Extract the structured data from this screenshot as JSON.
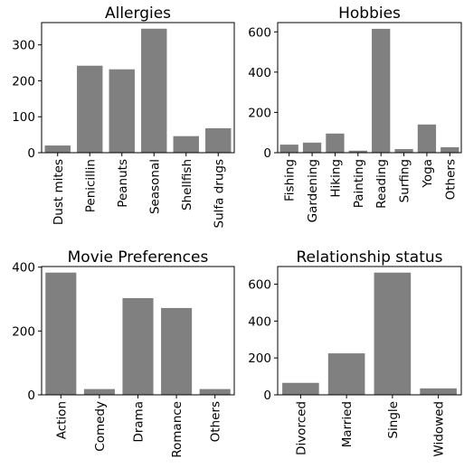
{
  "colors": {
    "bar": "#808080",
    "axis": "#000000",
    "background": "#ffffff"
  },
  "chart_data": [
    {
      "type": "bar",
      "title": "Allergies",
      "categories": [
        "Dust mites",
        "Penicillin",
        "Peanuts",
        "Seasonal",
        "Shellfish",
        "Sulfa drugs"
      ],
      "values": [
        20,
        242,
        232,
        345,
        46,
        68
      ],
      "ylim": [
        0,
        362
      ],
      "yticks": [
        0,
        100,
        200,
        300
      ],
      "grid": false
    },
    {
      "type": "bar",
      "title": "Hobbies",
      "categories": [
        "Fishing",
        "Gardening",
        "Hiking",
        "Painting",
        "Reading",
        "Surfing",
        "Yoga",
        "Others"
      ],
      "values": [
        40,
        50,
        95,
        10,
        615,
        18,
        140,
        27
      ],
      "ylim": [
        0,
        646
      ],
      "yticks": [
        0,
        200,
        400,
        600
      ],
      "grid": false
    },
    {
      "type": "bar",
      "title": "Movie Preferences",
      "categories": [
        "Action",
        "Comedy",
        "Drama",
        "Romance",
        "Others"
      ],
      "values": [
        383,
        18,
        303,
        272,
        18
      ],
      "ylim": [
        0,
        402
      ],
      "yticks": [
        0,
        200,
        400
      ],
      "grid": false
    },
    {
      "type": "bar",
      "title": "Relationship status",
      "categories": [
        "Divorced",
        "Married",
        "Single",
        "Widowed"
      ],
      "values": [
        65,
        225,
        663,
        35
      ],
      "ylim": [
        0,
        696
      ],
      "yticks": [
        0,
        200,
        400,
        600
      ],
      "grid": false
    }
  ]
}
